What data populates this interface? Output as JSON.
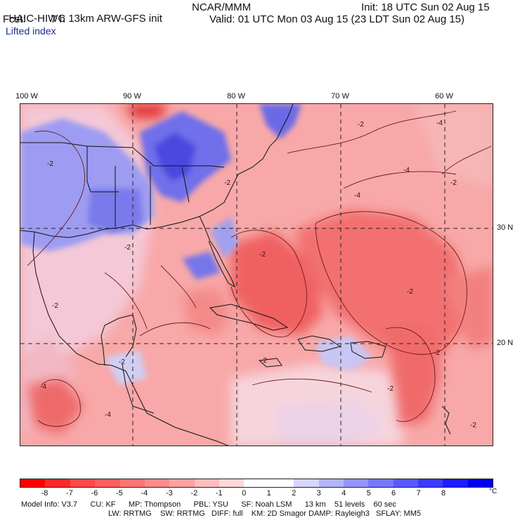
{
  "header": {
    "model": "HAIC-HIWC 13km ARW-GFS init",
    "org": "NCAR/MMM",
    "init": "Init: 18 UTC Sun 02 Aug 15",
    "fcst_label": "Fcst:",
    "fcst_value": "7 h",
    "valid": "Valid: 01 UTC Mon 03 Aug 15 (23 LDT Sun 02 Aug 15)",
    "field": "Lifted index"
  },
  "map": {
    "lon_labels": [
      "100 W",
      "90 W",
      "80 W",
      "70 W",
      "60 W"
    ],
    "lat_labels": [
      "30 N",
      "20 N"
    ],
    "contour_labels": [
      "-2",
      "-2",
      "-2",
      "-4",
      "-2",
      "-4",
      "-4",
      "-2",
      "-2",
      "-2",
      "-2",
      "-2",
      "-4",
      "-2",
      "-4",
      "-2",
      "-2",
      "-2"
    ]
  },
  "colorbar": {
    "ticks": [
      "-8",
      "-7",
      "-6",
      "-5",
      "-4",
      "-3",
      "-2",
      "-1",
      "0",
      "1",
      "2",
      "3",
      "4",
      "5",
      "6",
      "7",
      "8"
    ],
    "unit": "°C",
    "colors": [
      "#ff0000",
      "#ff2828",
      "#ff4848",
      "#ff5e5e",
      "#ff7474",
      "#ff8a8a",
      "#ffa2a2",
      "#ffbcbc",
      "#ffd8d8",
      "#ffffff",
      "#ffffff",
      "#d6d6ff",
      "#b4b4ff",
      "#9494ff",
      "#7676ff",
      "#5858ff",
      "#3a3aff",
      "#1c1cff",
      "#0000ee"
    ]
  },
  "footer": {
    "line1": "Model Info: V3.7      CU: KF      MP: Thompson      PBL: YSU      SF: Noah LSM      13 km    51 levels    60 sec",
    "line2": "LW: RRTMG    SW: RRTMG   DIFF: full    KM: 2D Smagor DAMP: Rayleigh3   SFLAY: MM5"
  }
}
